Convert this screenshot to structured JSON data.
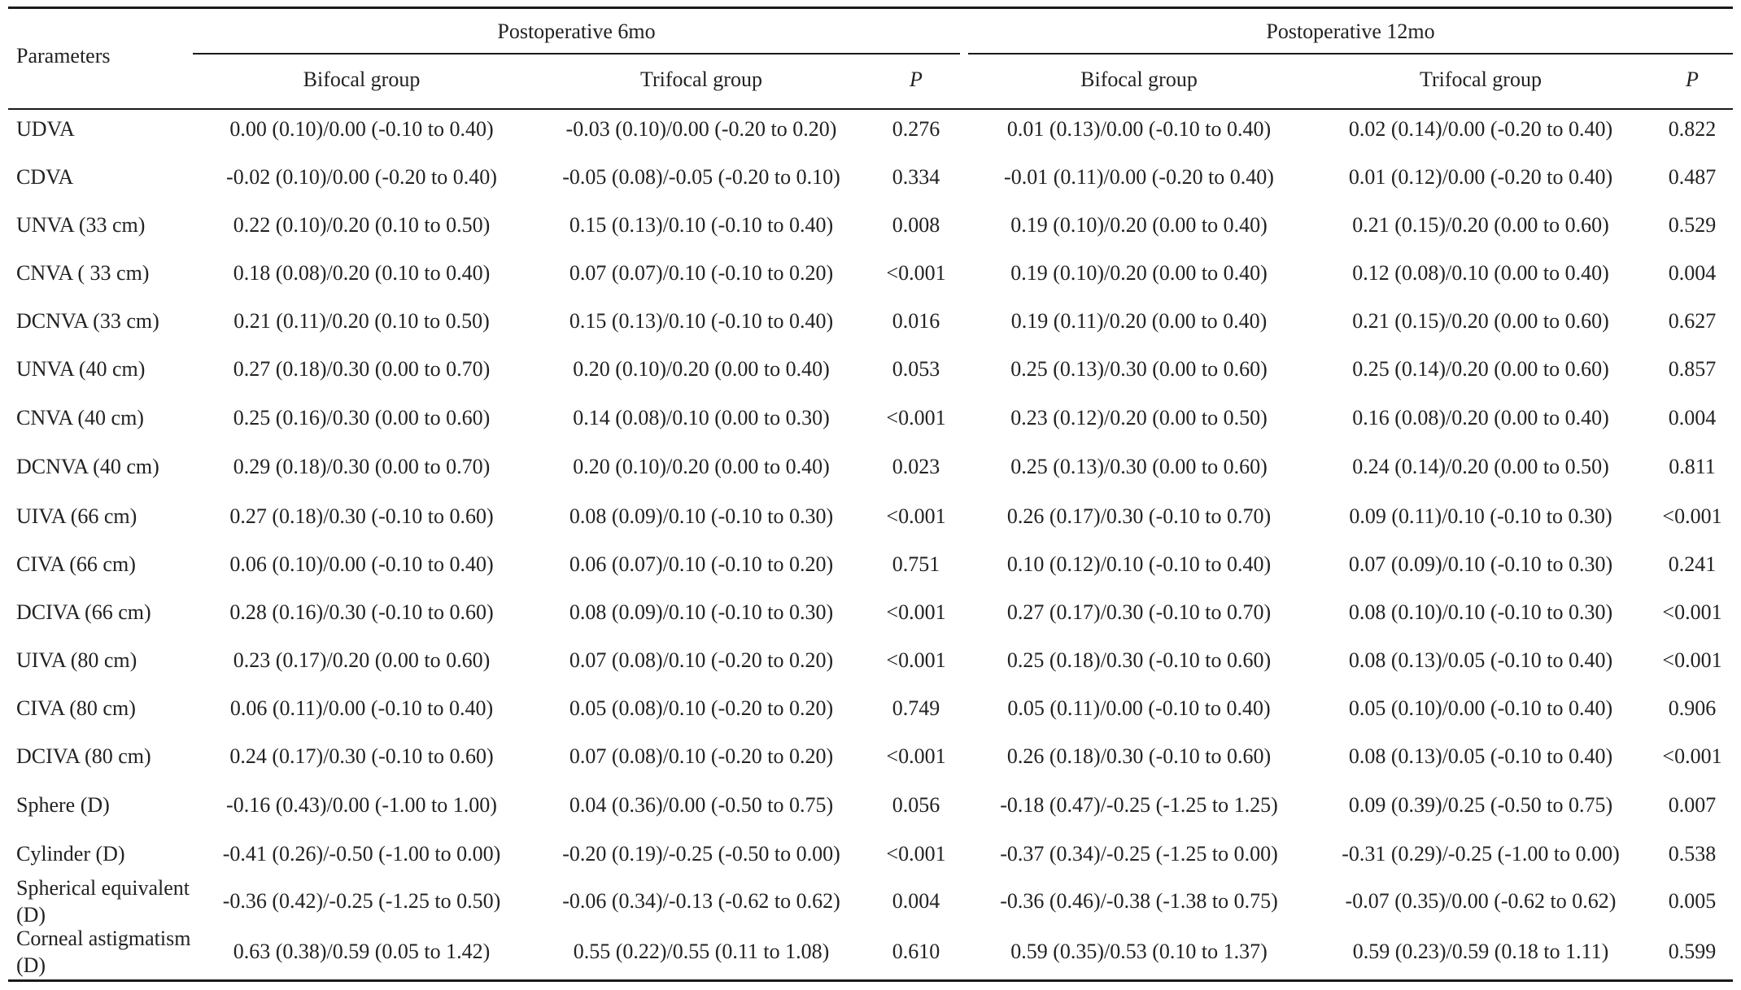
{
  "header": {
    "parameters": "Parameters",
    "period_6": "Postoperative 6mo",
    "period_12": "Postoperative 12mo",
    "bifocal": "Bifocal group",
    "trifocal": "Trifocal group",
    "p": "P"
  },
  "rows": [
    {
      "param": "UDVA",
      "b6": "0.00 (0.10)/0.00 (-0.10 to 0.40)",
      "t6": "-0.03 (0.10)/0.00 (-0.20 to 0.20)",
      "p6": "0.276",
      "b12": "0.01 (0.13)/0.00 (-0.10 to 0.40)",
      "t12": "0.02 (0.14)/0.00 (-0.20 to 0.40)",
      "p12": "0.822"
    },
    {
      "param": "CDVA",
      "b6": "-0.02 (0.10)/0.00 (-0.20 to 0.40)",
      "t6": "-0.05 (0.08)/-0.05 (-0.20 to 0.10)",
      "p6": "0.334",
      "b12": "-0.01 (0.11)/0.00 (-0.20 to 0.40)",
      "t12": "0.01 (0.12)/0.00 (-0.20 to 0.40)",
      "p12": "0.487"
    },
    {
      "param": "UNVA (33 cm)",
      "b6": "0.22 (0.10)/0.20 (0.10 to 0.50)",
      "t6": "0.15 (0.13)/0.10 (-0.10 to 0.40)",
      "p6": "0.008",
      "b12": "0.19 (0.10)/0.20 (0.00 to 0.40)",
      "t12": "0.21 (0.15)/0.20 (0.00 to 0.60)",
      "p12": "0.529"
    },
    {
      "param": "CNVA ( 33 cm)",
      "b6": "0.18 (0.08)/0.20 (0.10 to 0.40)",
      "t6": "0.07 (0.07)/0.10 (-0.10 to 0.20)",
      "p6": "<0.001",
      "b12": "0.19 (0.10)/0.20 (0.00 to 0.40)",
      "t12": "0.12 (0.08)/0.10 (0.00 to 0.40)",
      "p12": "0.004"
    },
    {
      "param": "DCNVA (33 cm)",
      "b6": "0.21 (0.11)/0.20 (0.10 to 0.50)",
      "t6": "0.15 (0.13)/0.10 (-0.10 to 0.40)",
      "p6": "0.016",
      "b12": "0.19 (0.11)/0.20 (0.00 to 0.40)",
      "t12": "0.21 (0.15)/0.20 (0.00 to 0.60)",
      "p12": "0.627"
    },
    {
      "param": "UNVA (40 cm)",
      "b6": "0.27 (0.18)/0.30 (0.00 to 0.70)",
      "t6": "0.20 (0.10)/0.20 (0.00 to 0.40)",
      "p6": "0.053",
      "b12": "0.25 (0.13)/0.30 (0.00 to 0.60)",
      "t12": "0.25 (0.14)/0.20 (0.00 to 0.60)",
      "p12": "0.857"
    },
    {
      "param": "CNVA (40 cm)",
      "b6": "0.25 (0.16)/0.30 (0.00 to 0.60)",
      "t6": "0.14 (0.08)/0.10 (0.00 to 0.30)",
      "p6": "<0.001",
      "b12": "0.23 (0.12)/0.20 (0.00 to 0.50)",
      "t12": "0.16 (0.08)/0.20 (0.00 to 0.40)",
      "p12": "0.004"
    },
    {
      "param": "DCNVA (40 cm)",
      "b6": "0.29 (0.18)/0.30 (0.00 to 0.70)",
      "t6": "0.20 (0.10)/0.20 (0.00 to 0.40)",
      "p6": "0.023",
      "b12": "0.25 (0.13)/0.30 (0.00 to 0.60)",
      "t12": "0.24 (0.14)/0.20 (0.00 to 0.50)",
      "p12": "0.811"
    },
    {
      "param": "UIVA (66 cm)",
      "b6": "0.27 (0.18)/0.30 (-0.10 to 0.60)",
      "t6": "0.08 (0.09)/0.10 (-0.10 to 0.30)",
      "p6": "<0.001",
      "b12": "0.26 (0.17)/0.30 (-0.10 to 0.70)",
      "t12": "0.09 (0.11)/0.10 (-0.10 to 0.30)",
      "p12": "<0.001"
    },
    {
      "param": "CIVA (66 cm)",
      "b6": "0.06 (0.10)/0.00 (-0.10 to 0.40)",
      "t6": "0.06 (0.07)/0.10 (-0.10 to 0.20)",
      "p6": "0.751",
      "b12": "0.10 (0.12)/0.10 (-0.10 to 0.40)",
      "t12": "0.07 (0.09)/0.10 (-0.10 to 0.30)",
      "p12": "0.241"
    },
    {
      "param": "DCIVA (66 cm)",
      "b6": "0.28 (0.16)/0.30 (-0.10 to 0.60)",
      "t6": "0.08 (0.09)/0.10 (-0.10 to 0.30)",
      "p6": "<0.001",
      "b12": "0.27 (0.17)/0.30 (-0.10 to 0.70)",
      "t12": "0.08 (0.10)/0.10 (-0.10 to 0.30)",
      "p12": "<0.001"
    },
    {
      "param": "UIVA (80 cm)",
      "b6": "0.23 (0.17)/0.20 (0.00 to 0.60)",
      "t6": "0.07 (0.08)/0.10 (-0.20 to 0.20)",
      "p6": "<0.001",
      "b12": "0.25 (0.18)/0.30 (-0.10 to 0.60)",
      "t12": "0.08 (0.13)/0.05 (-0.10 to 0.40)",
      "p12": "<0.001"
    },
    {
      "param": "CIVA (80 cm)",
      "b6": "0.06 (0.11)/0.00 (-0.10 to 0.40)",
      "t6": "0.05 (0.08)/0.10 (-0.20 to 0.20)",
      "p6": "0.749",
      "b12": "0.05 (0.11)/0.00 (-0.10 to 0.40)",
      "t12": "0.05 (0.10)/0.00 (-0.10 to 0.40)",
      "p12": "0.906"
    },
    {
      "param": "DCIVA (80 cm)",
      "b6": "0.24 (0.17)/0.30 (-0.10 to 0.60)",
      "t6": "0.07 (0.08)/0.10 (-0.20 to 0.20)",
      "p6": "<0.001",
      "b12": "0.26 (0.18)/0.30 (-0.10 to 0.60)",
      "t12": "0.08 (0.13)/0.05 (-0.10 to 0.40)",
      "p12": "<0.001"
    },
    {
      "param": "Sphere (D)",
      "b6": "-0.16 (0.43)/0.00 (-1.00 to 1.00)",
      "t6": "0.04 (0.36)/0.00 (-0.50 to 0.75)",
      "p6": "0.056",
      "b12": "-0.18 (0.47)/-0.25 (-1.25 to 1.25)",
      "t12": "0.09 (0.39)/0.25 (-0.50 to 0.75)",
      "p12": "0.007"
    },
    {
      "param": "Cylinder (D)",
      "b6": "-0.41 (0.26)/-0.50 (-1.00 to 0.00)",
      "t6": "-0.20 (0.19)/-0.25 (-0.50 to 0.00)",
      "p6": "<0.001",
      "b12": "-0.37 (0.34)/-0.25 (-1.25 to 0.00)",
      "t12": "-0.31 (0.29)/-0.25 (-1.00 to 0.00)",
      "p12": "0.538"
    },
    {
      "param": "Spherical equivalent (D)",
      "b6": "-0.36 (0.42)/-0.25 (-1.25 to 0.50)",
      "t6": "-0.06 (0.34)/-0.13 (-0.62 to 0.62)",
      "p6": "0.004",
      "b12": "-0.36 (0.46)/-0.38 (-1.38 to 0.75)",
      "t12": "-0.07 (0.35)/0.00 (-0.62 to 0.62)",
      "p12": "0.005"
    },
    {
      "param": "Corneal astigmatism (D)",
      "b6": "0.63 (0.38)/0.59 (0.05 to 1.42)",
      "t6": "0.55 (0.22)/0.55 (0.11 to 1.08)",
      "p6": "0.610",
      "b12": "0.59 (0.35)/0.53 (0.10 to 1.37)",
      "t12": "0.59 (0.23)/0.59 (0.18 to 1.11)",
      "p12": "0.599"
    }
  ]
}
